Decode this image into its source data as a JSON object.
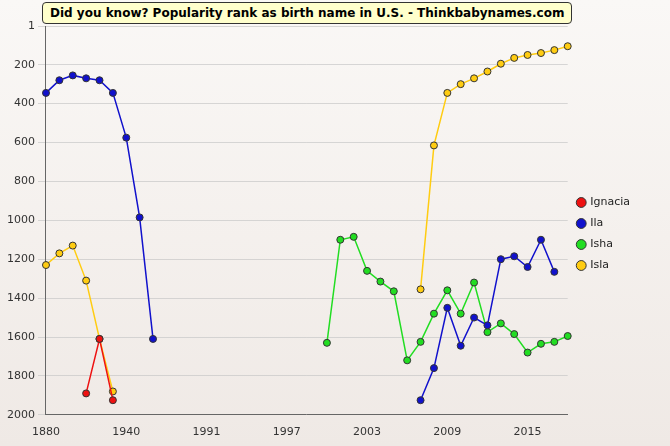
{
  "chart_data": {
    "type": "line",
    "title": "Did you know? Popularity rank as birth name in U.S. - Thinkbabynames.com",
    "categories": [
      1880,
      null,
      null,
      null,
      null,
      null,
      1940,
      null,
      null,
      null,
      null,
      null,
      1991,
      null,
      null,
      null,
      null,
      null,
      1997,
      null,
      null,
      null,
      null,
      null,
      2003,
      null,
      null,
      null,
      null,
      null,
      2009,
      null,
      null,
      null,
      null,
      null,
      2015,
      null,
      null,
      null
    ],
    "series": [
      {
        "name": "Ignacia",
        "color": "#ee1111",
        "values": [
          null,
          null,
          null,
          1890,
          1610,
          1925,
          null,
          null,
          null,
          null,
          null,
          null,
          null,
          null,
          null,
          null,
          null,
          null,
          null,
          null,
          null,
          null,
          null,
          null,
          null,
          null,
          null,
          null,
          null,
          null,
          null,
          null,
          null,
          null,
          null,
          null,
          null,
          null,
          null,
          null
        ]
      },
      {
        "name": "Ila",
        "color": "#1111cc",
        "values": [
          345,
          280,
          255,
          270,
          280,
          345,
          575,
          985,
          1610,
          null,
          null,
          null,
          null,
          null,
          null,
          null,
          null,
          null,
          null,
          null,
          null,
          null,
          null,
          null,
          null,
          null,
          null,
          null,
          1925,
          1760,
          1450,
          1645,
          1500,
          1540,
          1200,
          1185,
          1240,
          1100,
          1265,
          null
        ]
      },
      {
        "name": "Isha",
        "color": "#22dd22",
        "values": [
          null,
          null,
          null,
          null,
          null,
          null,
          null,
          null,
          null,
          null,
          null,
          null,
          null,
          null,
          null,
          null,
          null,
          null,
          null,
          null,
          null,
          1630,
          1100,
          1085,
          1260,
          1315,
          1365,
          1720,
          1625,
          1480,
          1360,
          1480,
          1320,
          1575,
          1530,
          1585,
          1680,
          1635,
          1625,
          1595
        ]
      },
      {
        "name": "Isla",
        "color": "#ffcc11",
        "values": [
          1230,
          1170,
          1130,
          1310,
          1610,
          1880,
          null,
          null,
          null,
          null,
          null,
          null,
          null,
          null,
          null,
          null,
          null,
          null,
          null,
          null,
          null,
          null,
          null,
          null,
          null,
          null,
          null,
          null,
          1355,
          615,
          345,
          300,
          270,
          235,
          195,
          165,
          150,
          140,
          125,
          105
        ]
      }
    ],
    "ylim": [
      1,
      2000
    ],
    "yticks": [
      1,
      200,
      400,
      600,
      800,
      1000,
      1200,
      1400,
      1600,
      1800,
      2000
    ],
    "grid": true,
    "legend": "right",
    "marker": "circle"
  }
}
